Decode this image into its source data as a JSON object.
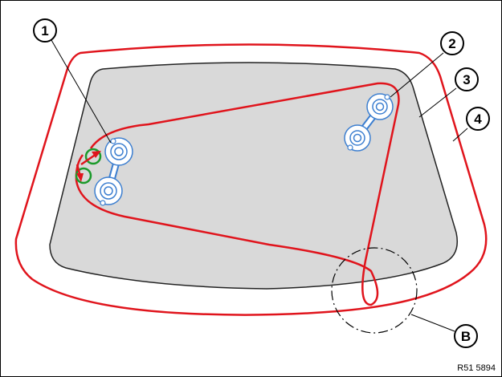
{
  "figure_code": "R51 5894",
  "callouts": [
    {
      "id": "1",
      "label": "1"
    },
    {
      "id": "2",
      "label": "2"
    },
    {
      "id": "3",
      "label": "3"
    },
    {
      "id": "4",
      "label": "4"
    },
    {
      "id": "B",
      "label": "B"
    }
  ],
  "colors": {
    "outline_red": "#e0141c",
    "glass_fill": "#d9d9d9",
    "glass_edge": "#222222",
    "suction_cup_blue": "#3d7fd0",
    "arrow_red": "#e0141c",
    "arrow_ring_green": "#1a9a2a",
    "detail_circle": "#000000"
  }
}
